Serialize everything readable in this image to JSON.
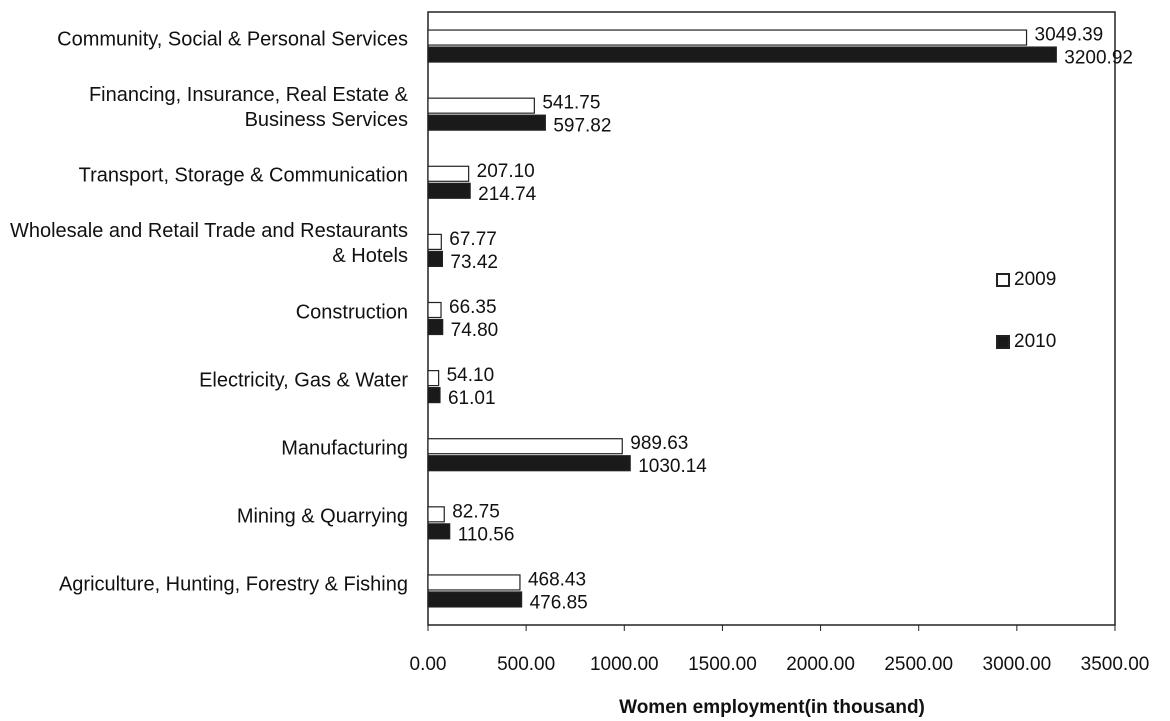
{
  "chart_data": {
    "type": "bar",
    "orientation": "horizontal",
    "xlabel": "Women employment(in thousand)",
    "categories": [
      "Community, Social & Personal Services",
      "Financing, Insurance, Real Estate & Business Services",
      "Transport, Storage & Communication",
      "Wholesale and Retail Trade and Restaurants & Hotels",
      "Construction",
      "Electricity, Gas & Water",
      "Manufacturing",
      "Mining & Quarrying",
      "Agriculture, Hunting, Forestry & Fishing"
    ],
    "series": [
      {
        "name": "2009",
        "color": "#ffffff",
        "values": [
          3049.39,
          541.75,
          207.1,
          67.77,
          66.35,
          54.1,
          989.63,
          82.75,
          468.43
        ],
        "value_labels": [
          "3049.39",
          "541.75",
          "207.10",
          "67.77",
          "66.35",
          "54.10",
          "989.63",
          "82.75",
          "468.43"
        ]
      },
      {
        "name": "2010",
        "color": "#1a1a1a",
        "values": [
          3200.92,
          597.82,
          214.74,
          73.42,
          74.8,
          61.01,
          1030.14,
          110.56,
          476.85
        ],
        "value_labels": [
          "3200.92",
          "597.82",
          "214.74",
          "73.42",
          "74.80",
          "61.01",
          "1030.14",
          "110.56",
          "476.85"
        ]
      }
    ],
    "xlim": [
      0,
      3500
    ],
    "xticks": [
      {
        "value": 0,
        "label": "0.00"
      },
      {
        "value": 500,
        "label": "500.00"
      },
      {
        "value": 1000,
        "label": "1000.00"
      },
      {
        "value": 1500,
        "label": "1500.00"
      },
      {
        "value": 2000,
        "label": "2000.00"
      },
      {
        "value": 2500,
        "label": "2500.00"
      },
      {
        "value": 3000,
        "label": "3000.00"
      },
      {
        "value": 3500,
        "label": "3500.00"
      }
    ],
    "grid": false,
    "legend": "right"
  }
}
